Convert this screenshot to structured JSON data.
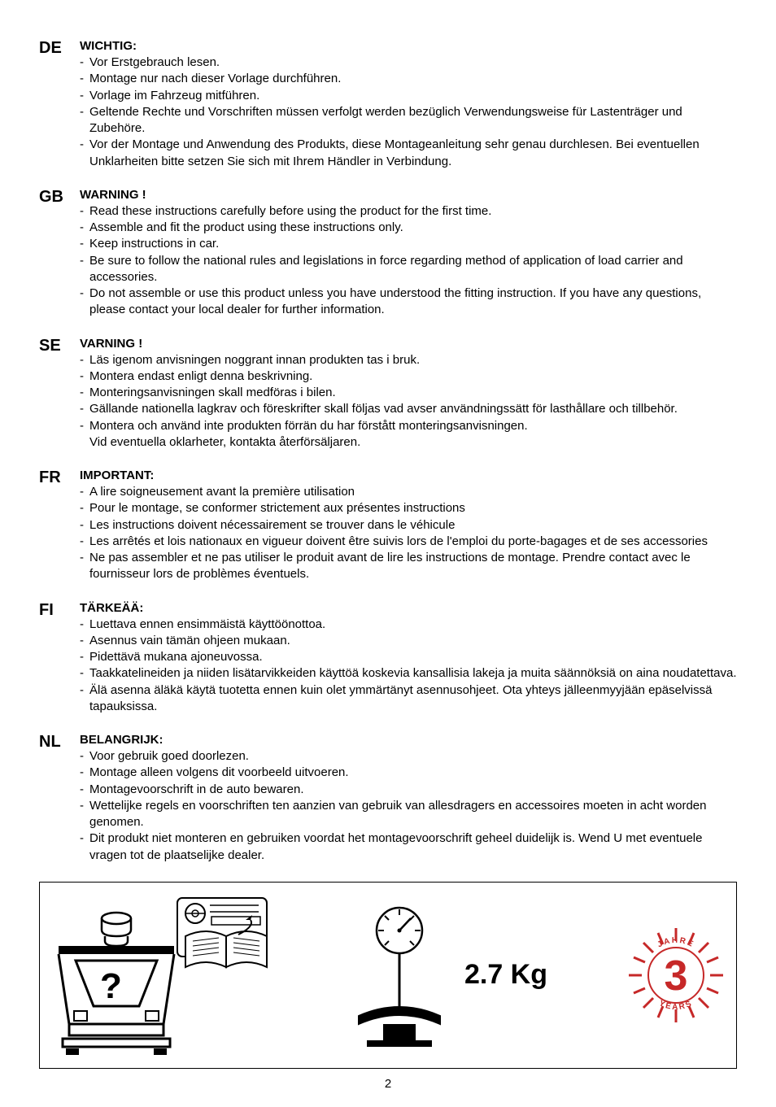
{
  "page_number": "2",
  "weight_label": "2.7 Kg",
  "warranty_years": "3",
  "warranty_text_top": "JAHRE",
  "warranty_text_bottom": "YEARS",
  "sections": [
    {
      "lang": "DE",
      "heading": "WICHTIG:",
      "bullets": [
        "Vor Erstgebrauch lesen.",
        "Montage nur nach dieser Vorlage durchführen.",
        "Vorlage im Fahrzeug mitführen.",
        "Geltende Rechte und Vorschriften müssen verfolgt werden bezüglich Verwendungsweise für Lastenträger und Zubehöre.",
        "Vor der Montage und Anwendung des Produkts, diese Montageanleitung sehr genau durchlesen. Bei eventuellen Unklarheiten bitte setzen Sie sich mit Ihrem Händler in Verbindung."
      ]
    },
    {
      "lang": "GB",
      "heading": "WARNING !",
      "bullets": [
        "Read these instructions carefully before using the product for the first time.",
        "Assemble and fit the product using these instructions only.",
        "Keep instructions in car.",
        "Be sure to follow the national rules and legislations in force regarding method of application of load carrier and accessories.",
        "Do not assemble or use this product unless you have understood the fitting instruction. If you have any questions, please contact your local dealer for further information."
      ]
    },
    {
      "lang": "SE",
      "heading": "VARNING !",
      "bullets": [
        "Läs igenom anvisningen noggrant innan produkten tas i bruk.",
        "Montera endast enligt denna beskrivning.",
        "Monteringsanvisningen skall medföras i bilen.",
        "Gällande nationella lagkrav och föreskrifter skall följas vad avser användningssätt för lasthållare och tillbehör.",
        "Montera och använd inte produkten förrän du har förstått monteringsanvisningen."
      ],
      "trailing": "Vid eventuella oklarheter, kontakta återförsäljaren."
    },
    {
      "lang": "FR",
      "heading": "IMPORTANT:",
      "bullets": [
        "A lire soigneusement avant la première utilisation",
        "Pour le montage, se conformer strictement aux présentes instructions",
        "Les instructions doivent nécessairement se trouver dans le véhicule",
        "Les arrêtés et lois nationaux en vigueur doivent être suivis lors de l'emploi du porte-bagages et de ses accessories",
        "Ne pas assembler et ne pas utiliser le produit avant de lire les instructions de montage. Prendre contact avec le fournisseur lors de problèmes éventuels."
      ]
    },
    {
      "lang": "FI",
      "heading": "TÄRKEÄÄ:",
      "bullets": [
        "Luettava ennen ensimmäistä käyttöönottoa.",
        "Asennus vain tämän ohjeen mukaan.",
        "Pidettävä mukana ajoneuvossa.",
        "Taakkatelineiden ja niiden lisätarvikkeiden käyttöä koskevia kansallisia lakeja ja muita säännöksiä on aina noudatettava.",
        "Älä asenna äläkä käytä tuotetta ennen kuin olet ymmärtänyt asennusohjeet. Ota yhteys jälleenmyyjään epäselvissä tapauksissa."
      ]
    },
    {
      "lang": "NL",
      "heading": "BELANGRIJK:",
      "bullets": [
        "Voor gebruik goed doorlezen.",
        "Montage alleen volgens dit voorbeeld uitvoeren.",
        "Montagevoorschrift in de auto bewaren.",
        "Wettelijke regels en voorschriften ten aanzien van gebruik van allesdragers en accessoires moeten in acht worden genomen.",
        "Dit produkt niet monteren en gebruiken voordat het montagevoorschrift geheel duidelijk is. Wend U met eventuele vragen tot de plaatselijke dealer."
      ]
    }
  ]
}
